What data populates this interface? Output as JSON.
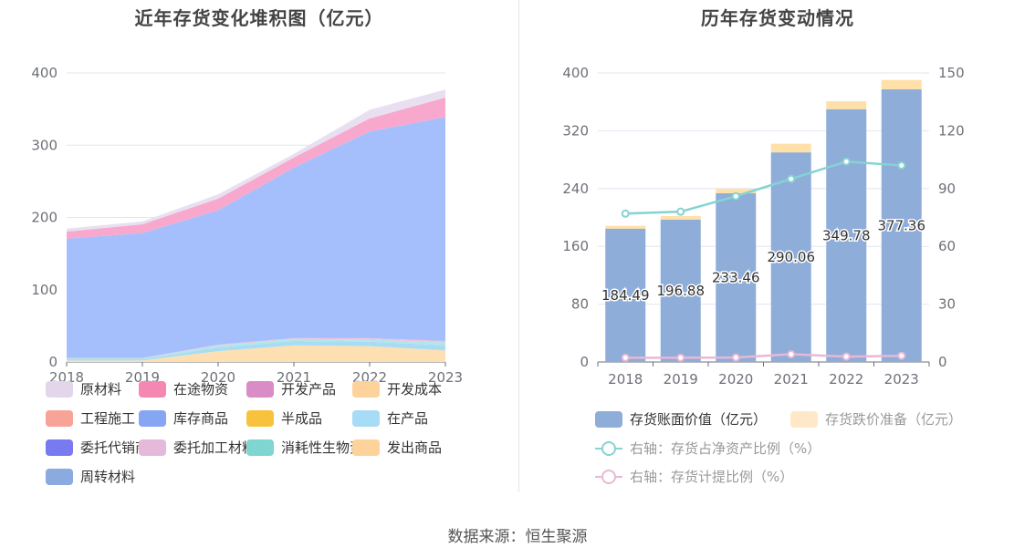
{
  "source": "数据来源：恒生聚源",
  "chart_data": [
    {
      "type": "area",
      "stacked": true,
      "title": "近年存货变化堆积图（亿元）",
      "x": [
        "2018",
        "2019",
        "2020",
        "2021",
        "2022",
        "2023"
      ],
      "ylim": [
        0,
        400
      ],
      "yticks": [
        0,
        100,
        200,
        300,
        400
      ],
      "grid": true,
      "legend_position": "bottom",
      "legend": [
        "原材料",
        "在途物资",
        "开发产品",
        "开发成本",
        "工程施工",
        "库存商品",
        "半成品",
        "在产品",
        "委托代销商品",
        "委托加工材料",
        "消耗性生物资产",
        "发出商品",
        "周转材料"
      ],
      "series": [
        {
          "name": "开发成本",
          "color": "#fddfb2",
          "values": [
            2,
            2,
            15,
            23,
            22,
            16
          ]
        },
        {
          "name": "在产品",
          "color": "#a8dcf5",
          "values": [
            2,
            2,
            5,
            6,
            6,
            7
          ]
        },
        {
          "name": "消耗性生物资产",
          "color": "#b3e6e6",
          "values": [
            1,
            1,
            3,
            3,
            3,
            4
          ]
        },
        {
          "name": "委托加工材料",
          "color": "#f1c0dd",
          "values": [
            0.5,
            0.5,
            1,
            1,
            2,
            2
          ]
        },
        {
          "name": "库存商品",
          "color": "#a5bffd",
          "values": [
            165,
            173,
            186,
            236,
            286,
            310
          ]
        },
        {
          "name": "在途物资",
          "color": "#f8a8cd",
          "values": [
            10,
            12,
            16,
            14,
            18,
            27
          ]
        },
        {
          "name": "原材料",
          "color": "#e8e0f0",
          "values": [
            4,
            4,
            6,
            5,
            12,
            11
          ]
        }
      ],
      "legend_colors": {
        "原材料": "#e3d6ea",
        "在途物资": "#f587b3",
        "开发产品": "#d98cc6",
        "开发成本": "#fdd39b",
        "工程施工": "#f7a397",
        "库存商品": "#86a5f3",
        "半成品": "#f9c23c",
        "在产品": "#a7dbf6",
        "委托代销商品": "#7a7af0",
        "委托加工材料": "#e6b8da",
        "消耗性生物资产": "#7fd5d2",
        "发出商品": "#fdd39b",
        "周转材料": "#8aaae0"
      }
    },
    {
      "type": "bar",
      "stacked": true,
      "title": "历年存货变动情况",
      "categories": [
        "2018",
        "2019",
        "2020",
        "2021",
        "2022",
        "2023"
      ],
      "ylim": [
        0,
        400
      ],
      "yticks": [
        0,
        80,
        160,
        240,
        320,
        400
      ],
      "y2lim": [
        0,
        150
      ],
      "y2ticks": [
        0,
        30,
        60,
        90,
        120,
        150
      ],
      "grid": true,
      "legend_position": "bottom",
      "series": [
        {
          "name": "存货账面价值（亿元）",
          "color": "#8fadd9",
          "values": [
            184.49,
            196.88,
            233.46,
            290.06,
            349.78,
            377.36
          ],
          "labels": [
            "184.49",
            "196.88",
            "233.46",
            "290.06",
            "349.78",
            "377.36"
          ]
        },
        {
          "name": "存货跌价准备（亿元）",
          "color": "#ffe0a8",
          "legend_color": "#ffe8c7",
          "values": [
            4,
            5,
            6,
            12,
            11,
            13
          ]
        }
      ],
      "line_series": [
        {
          "name": "右轴：存货占净资产比例（%）",
          "color": "#85d3d3",
          "axis": "right",
          "values": [
            77,
            78,
            86,
            95,
            104,
            102
          ]
        },
        {
          "name": "右轴：存货计提比例（%）",
          "color": "#e8b8d6",
          "axis": "right",
          "values": [
            2.2,
            2.2,
            2.3,
            4,
            2.8,
            3.2
          ]
        }
      ]
    }
  ]
}
